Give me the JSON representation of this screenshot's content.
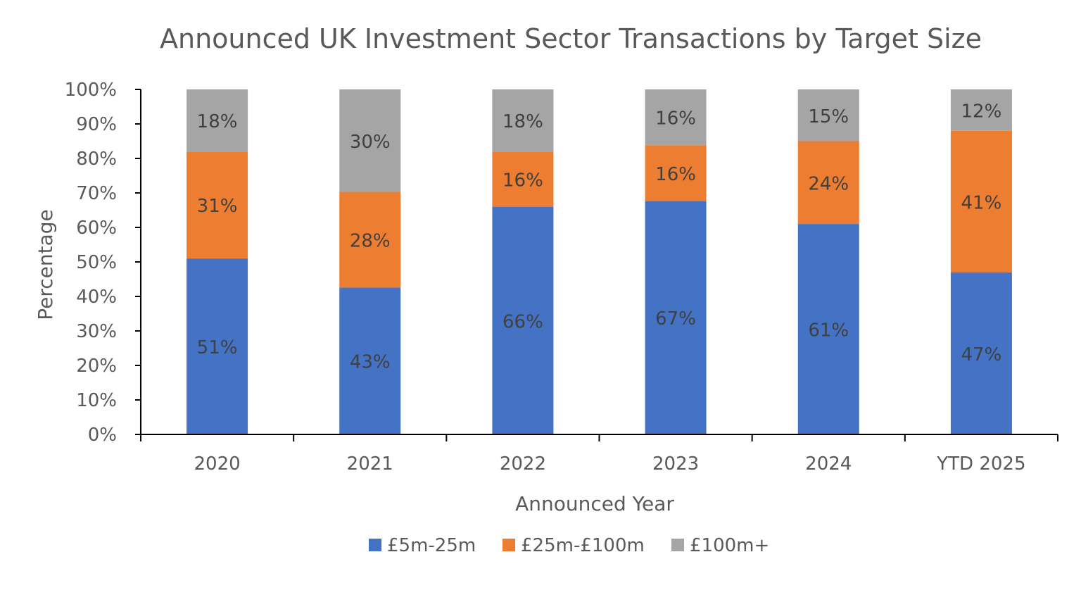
{
  "chart_data": {
    "type": "bar",
    "stacked": true,
    "percent_stacked": true,
    "title": "Announced UK Investment Sector Transactions by Target Size",
    "xlabel": "Announced Year",
    "ylabel": "Percentage",
    "ylim": [
      0,
      100
    ],
    "yticks": [
      "0%",
      "10%",
      "20%",
      "30%",
      "40%",
      "50%",
      "60%",
      "70%",
      "80%",
      "90%",
      "100%"
    ],
    "categories": [
      "2020",
      "2021",
      "2022",
      "2023",
      "2024",
      "YTD 2025"
    ],
    "series": [
      {
        "name": "£5m-25m",
        "color": "#4472C4",
        "values": [
          51,
          43,
          66,
          67,
          61,
          47
        ]
      },
      {
        "name": "£25m-£100m",
        "color": "#ED7D31",
        "values": [
          31,
          28,
          16,
          16,
          24,
          41
        ]
      },
      {
        "name": "£100m+",
        "color": "#A5A5A5",
        "values": [
          18,
          30,
          18,
          16,
          15,
          12
        ]
      }
    ],
    "data_label_suffix": "%",
    "grid": false,
    "legend_position": "bottom"
  }
}
